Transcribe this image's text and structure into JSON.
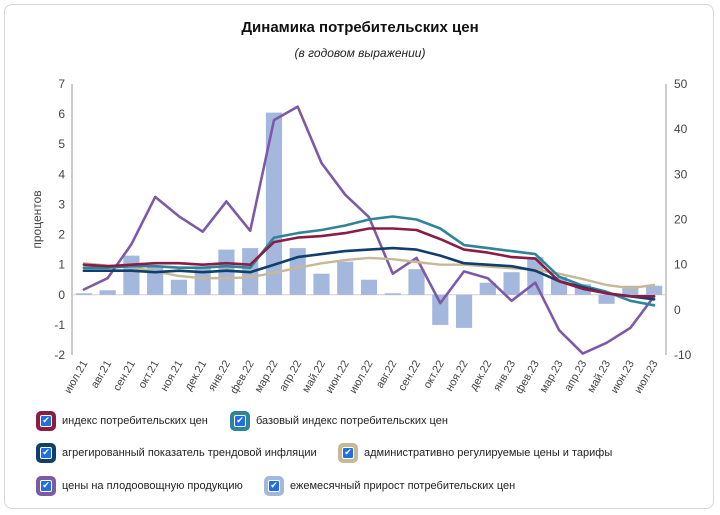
{
  "chart_data": {
    "type": "line",
    "title": "Динамика потребительских цен",
    "subtitle": "(в годовом выражении)",
    "ylabel": "процентов",
    "ylim": [
      -2,
      7
    ],
    "y2lim": [
      -10,
      50
    ],
    "yticks": [
      "-2",
      "-1",
      "0",
      "1",
      "2",
      "3",
      "4",
      "5",
      "6",
      "7"
    ],
    "y2ticks": [
      "-10",
      "0",
      "10",
      "20",
      "30",
      "40",
      "50"
    ],
    "categories": [
      "июл.21",
      "авг.21",
      "сен.21",
      "окт.21",
      "ноя.21",
      "дек.21",
      "янв.22",
      "фев.22",
      "мар.22",
      "апр.22",
      "май.22",
      "июн.22",
      "июл.22",
      "авг.22",
      "сен.22",
      "окт.22",
      "ноя.22",
      "дек.22",
      "янв.23",
      "фев.23",
      "мар.23",
      "апр.23",
      "май.23",
      "июн.23",
      "июл.23"
    ],
    "grid": false,
    "legend_position": "bottom",
    "series": [
      {
        "name": "индекс потребительских цен",
        "type": "line",
        "axis": "left",
        "color": "#8b1c46",
        "values": [
          1.0,
          0.95,
          1.0,
          1.05,
          1.05,
          1.0,
          1.05,
          1.0,
          1.75,
          1.9,
          1.95,
          2.05,
          2.2,
          2.2,
          2.15,
          1.85,
          1.5,
          1.4,
          1.25,
          1.2,
          0.45,
          0.2,
          0.05,
          -0.05,
          -0.05
        ]
      },
      {
        "name": "базовый индекс потребительских цен",
        "type": "line",
        "axis": "left",
        "color": "#2e8599",
        "values": [
          0.9,
          0.9,
          0.95,
          0.95,
          0.9,
          0.9,
          0.95,
          0.9,
          1.9,
          2.05,
          2.15,
          2.3,
          2.5,
          2.6,
          2.5,
          2.2,
          1.65,
          1.55,
          1.45,
          1.35,
          0.6,
          0.3,
          0.1,
          -0.2,
          -0.35
        ]
      },
      {
        "name": "агрегированный показатель трендовой инфляции",
        "type": "line",
        "axis": "left",
        "color": "#103f6c",
        "values": [
          0.8,
          0.8,
          0.8,
          0.75,
          0.8,
          0.75,
          0.8,
          0.75,
          1.0,
          1.25,
          1.35,
          1.45,
          1.5,
          1.55,
          1.5,
          1.3,
          1.05,
          1.0,
          0.95,
          0.8,
          0.45,
          0.25,
          0.05,
          -0.05,
          -0.15
        ]
      },
      {
        "name": "административно регулируемые цены и тарифы",
        "type": "line",
        "axis": "right",
        "color": "#c8b996",
        "values": [
          10.3,
          9.8,
          9.5,
          8.5,
          7.5,
          7.0,
          7.0,
          7.2,
          8.2,
          9.3,
          10.3,
          11.0,
          11.5,
          11.2,
          10.6,
          10.0,
          10.0,
          9.6,
          9.2,
          8.9,
          8.0,
          6.8,
          5.5,
          4.8,
          5.5
        ]
      },
      {
        "name": "цены на плодоовощную продукцию",
        "type": "line",
        "axis": "right",
        "color": "#7e5aa6",
        "values": [
          4.5,
          7.0,
          14.5,
          25.0,
          20.7,
          17.3,
          24.0,
          17.5,
          42.0,
          45.0,
          32.5,
          25.5,
          20.5,
          8.0,
          11.5,
          1.5,
          8.5,
          7.0,
          2.0,
          6.0,
          -4.5,
          -9.7,
          -7.3,
          -4.0,
          3.0
        ]
      },
      {
        "name": "ежемесячный прирост потребительских цен",
        "type": "bar",
        "axis": "left",
        "color": "#a4b7dc",
        "values": [
          0.05,
          0.15,
          1.3,
          0.95,
          0.5,
          0.9,
          1.5,
          1.55,
          6.05,
          1.55,
          0.7,
          1.1,
          0.5,
          0.05,
          0.85,
          -1.0,
          -1.1,
          0.4,
          0.75,
          1.25,
          0.6,
          0.35,
          -0.3,
          0.3,
          0.3
        ]
      }
    ]
  },
  "legend": [
    {
      "label": "индекс потребительских цен",
      "color": "#8b1c46"
    },
    {
      "label": "базовый индекс потребительских цен",
      "color": "#2e8599"
    },
    {
      "label": "агрегированный показатель трендовой инфляции",
      "color": "#103f6c"
    },
    {
      "label": "административно регулируемые цены и тарифы",
      "color": "#c8b996"
    },
    {
      "label": "цены на плодоовощную продукцию",
      "color": "#7e5aa6"
    },
    {
      "label": "ежемесячный прирост потребительских цен",
      "color": "#a4b7dc"
    }
  ]
}
